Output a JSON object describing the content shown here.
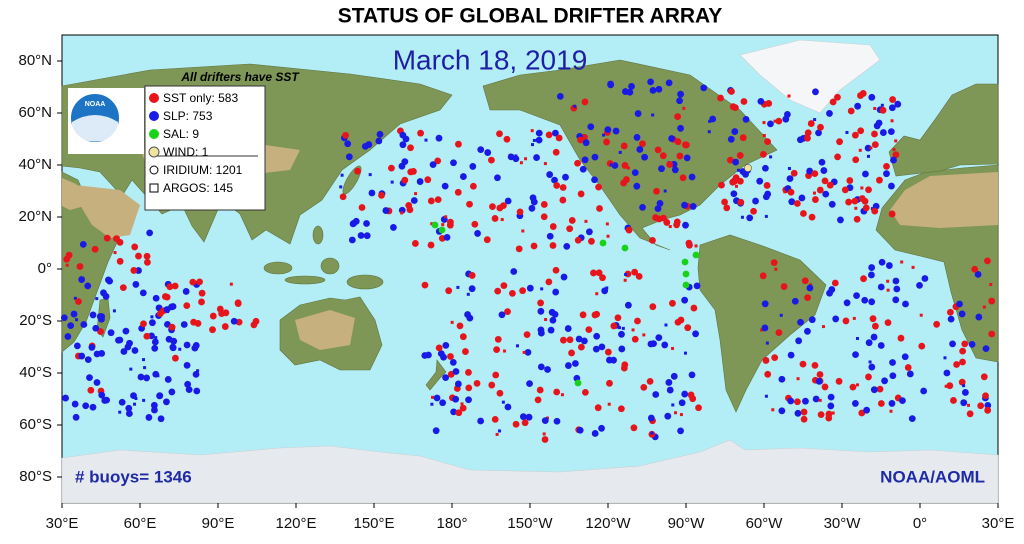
{
  "header": {
    "title": "STATUS OF GLOBAL DRIFTER ARRAY",
    "date": "March 18, 2019"
  },
  "logo": "NOAA",
  "legend": {
    "heading": "All drifters have SST",
    "items": [
      "SST only: 583",
      "SLP: 753",
      "SAL: 9",
      "WIND: 1",
      "IRIDIUM: 1201",
      "ARGOS: 145"
    ]
  },
  "footer": {
    "buoys": "# buoys= 1346",
    "credit": "NOAA/AOML"
  },
  "axes": {
    "lon_labels": [
      "30°E",
      "60°E",
      "90°E",
      "120°E",
      "150°E",
      "180°",
      "150°W",
      "120°W",
      "90°W",
      "60°W",
      "30°W",
      "0°",
      "30°E"
    ],
    "lat_labels": [
      "80°N",
      "60°N",
      "40°N",
      "20°N",
      "0°",
      "20°S",
      "40°S",
      "60°S",
      "80°S"
    ]
  }
}
